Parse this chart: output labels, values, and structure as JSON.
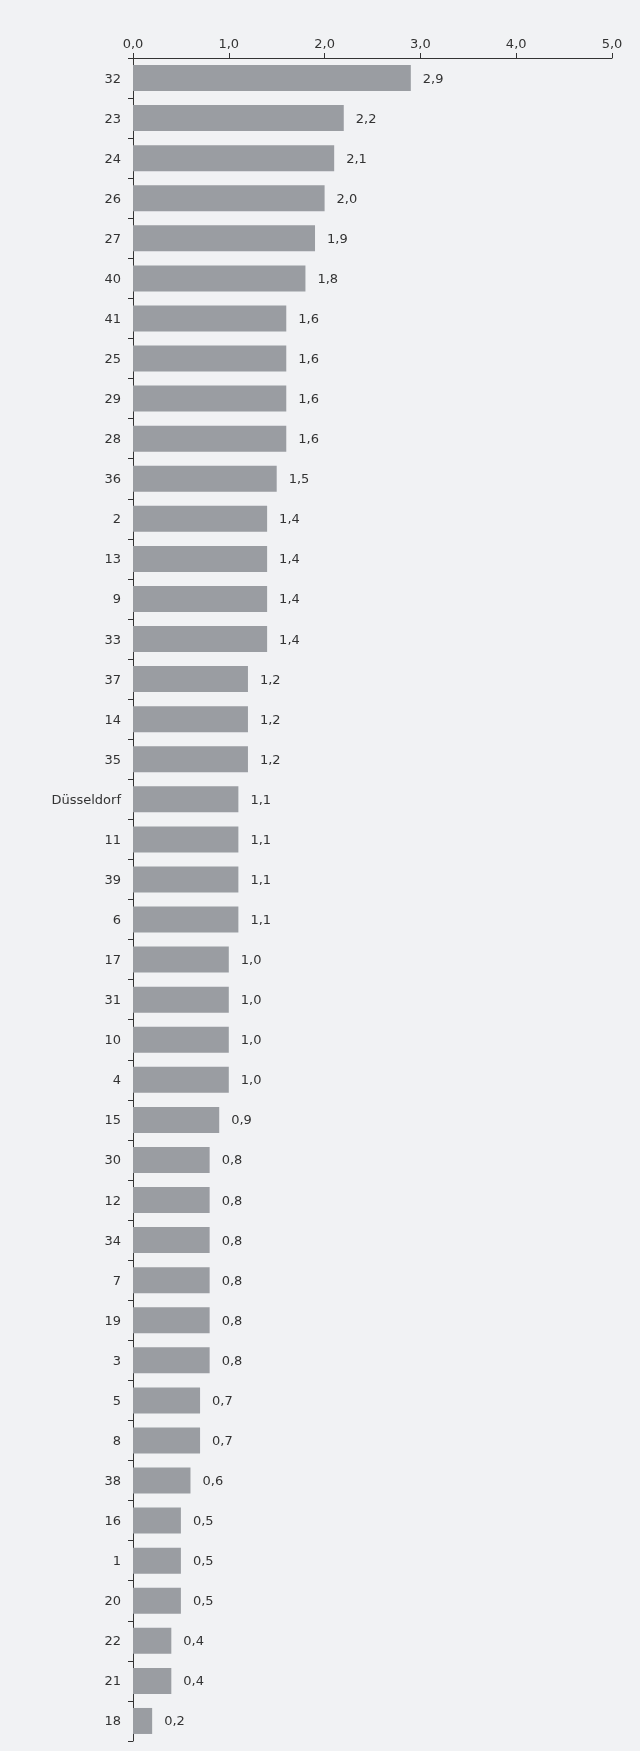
{
  "chart_data": {
    "type": "bar",
    "orientation": "horizontal",
    "categories": [
      "32",
      "23",
      "24",
      "26",
      "27",
      "40",
      "41",
      "25",
      "29",
      "28",
      "36",
      "2",
      "13",
      "9",
      "33",
      "37",
      "14",
      "35",
      "Düsseldorf",
      "11",
      "39",
      "6",
      "17",
      "31",
      "10",
      "4",
      "15",
      "30",
      "12",
      "34",
      "7",
      "19",
      "3",
      "5",
      "8",
      "38",
      "16",
      "1",
      "20",
      "22",
      "21",
      "18"
    ],
    "values": [
      2.9,
      2.2,
      2.1,
      2.0,
      1.9,
      1.8,
      1.6,
      1.6,
      1.6,
      1.6,
      1.5,
      1.4,
      1.4,
      1.4,
      1.4,
      1.2,
      1.2,
      1.2,
      1.1,
      1.1,
      1.1,
      1.1,
      1.0,
      1.0,
      1.0,
      1.0,
      0.9,
      0.8,
      0.8,
      0.8,
      0.8,
      0.8,
      0.8,
      0.7,
      0.7,
      0.6,
      0.5,
      0.5,
      0.5,
      0.4,
      0.4,
      0.2
    ],
    "value_labels": [
      "2,9",
      "2,2",
      "2,1",
      "2,0",
      "1,9",
      "1,8",
      "1,6",
      "1,6",
      "1,6",
      "1,6",
      "1,5",
      "1,4",
      "1,4",
      "1,4",
      "1,4",
      "1,2",
      "1,2",
      "1,2",
      "1,1",
      "1,1",
      "1,1",
      "1,1",
      "1,0",
      "1,0",
      "1,0",
      "1,0",
      "0,9",
      "0,8",
      "0,8",
      "0,8",
      "0,8",
      "0,8",
      "0,8",
      "0,7",
      "0,7",
      "0,6",
      "0,5",
      "0,5",
      "0,5",
      "0,4",
      "0,4",
      "0,2"
    ],
    "color": "#9a9da2",
    "xlim": [
      0,
      5
    ],
    "xticks": [
      {
        "value": 0,
        "label": "0,0"
      },
      {
        "value": 1,
        "label": "1,0"
      },
      {
        "value": 2,
        "label": "2,0"
      },
      {
        "value": 3,
        "label": "3,0"
      },
      {
        "value": 4,
        "label": "4,0"
      },
      {
        "value": 5,
        "label": "5,0"
      }
    ],
    "grid": false
  }
}
